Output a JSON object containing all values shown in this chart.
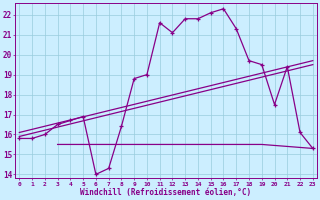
{
  "curve1_x": [
    0,
    1,
    2,
    3,
    4,
    5,
    6,
    7,
    8,
    9,
    10,
    11,
    12,
    13,
    14,
    15,
    16,
    17,
    18,
    19,
    20,
    21,
    22,
    23
  ],
  "curve1_y": [
    15.8,
    15.8,
    16.0,
    16.5,
    16.7,
    16.9,
    14.0,
    14.3,
    16.4,
    18.8,
    19.0,
    21.6,
    21.1,
    21.8,
    21.8,
    22.1,
    22.3,
    21.3,
    19.7,
    19.5,
    17.5,
    19.4,
    16.1,
    15.3
  ],
  "curve2_x": [
    0,
    23
  ],
  "curve2_y": [
    16.1,
    19.7
  ],
  "curve3_x": [
    0,
    23
  ],
  "curve3_y": [
    15.9,
    19.5
  ],
  "curve4_x": [
    3,
    10,
    19,
    23
  ],
  "curve4_y": [
    15.5,
    15.5,
    15.5,
    15.3
  ],
  "ylim": [
    13.8,
    22.6
  ],
  "yticks": [
    14,
    15,
    16,
    17,
    18,
    19,
    20,
    21,
    22
  ],
  "xlim": [
    -0.3,
    23.3
  ],
  "background_color": "#cceeff",
  "grid_color": "#99ccdd",
  "line_color": "#880088",
  "xlabel": "Windchill (Refroidissement éolien,°C)"
}
